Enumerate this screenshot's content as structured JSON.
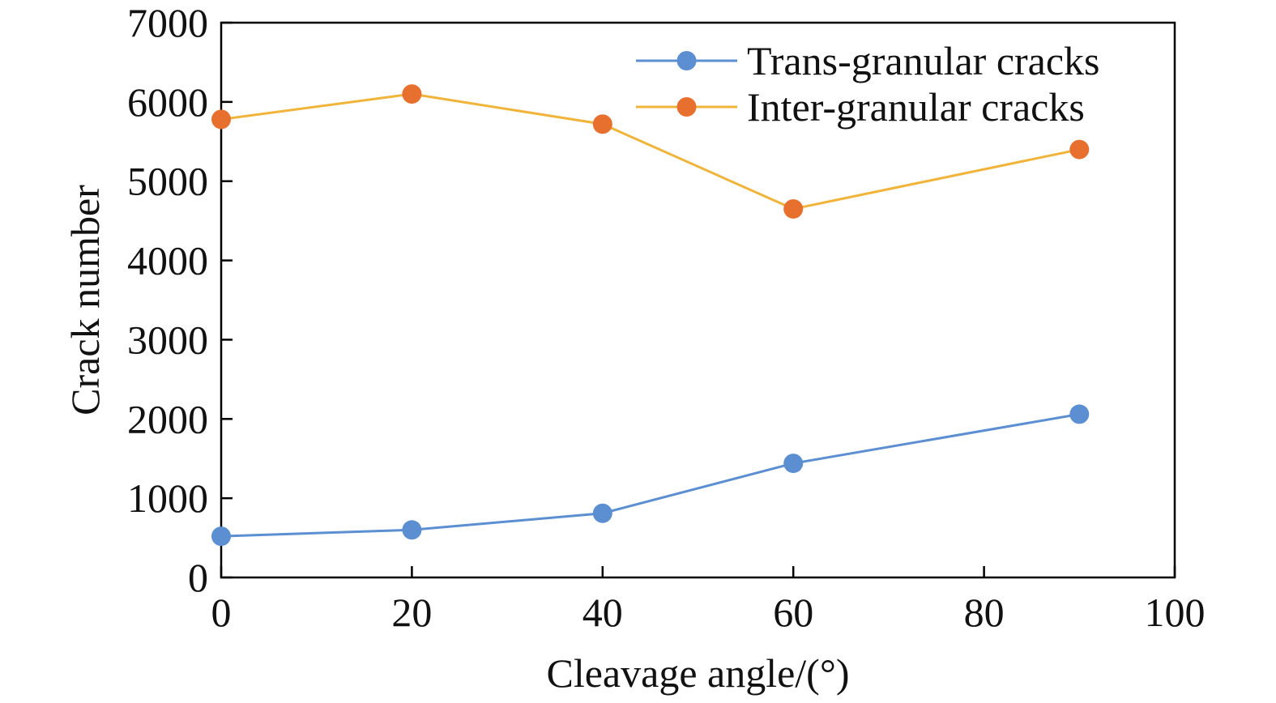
{
  "chart_data": {
    "type": "line",
    "title": "",
    "xlabel": "Cleavage angle/(°)",
    "ylabel": "Crack number",
    "xlim": [
      0,
      100
    ],
    "ylim": [
      0,
      7000
    ],
    "x_ticks": [
      0,
      20,
      40,
      60,
      80,
      100
    ],
    "y_ticks": [
      0,
      1000,
      2000,
      3000,
      4000,
      5000,
      6000,
      7000
    ],
    "x_tick_labels": [
      "0",
      "20",
      "40",
      "60",
      "80",
      "100"
    ],
    "y_tick_labels": [
      "0",
      "1000",
      "2000",
      "3000",
      "4000",
      "5000",
      "6000",
      "7000"
    ],
    "grid": false,
    "legend_position": "top-right",
    "series": [
      {
        "name": "Trans-granular cracks",
        "line_color": "#5B8FD2",
        "marker_color": "#5B8FD2",
        "x": [
          0,
          20,
          40,
          60,
          90
        ],
        "y": [
          520,
          600,
          810,
          1440,
          2060
        ]
      },
      {
        "name": "Inter-granular cracks",
        "line_color": "#F0B43A",
        "marker_color": "#E8702F",
        "x": [
          0,
          20,
          40,
          60,
          90
        ],
        "y": [
          5780,
          6100,
          5720,
          4650,
          5400
        ]
      }
    ]
  }
}
